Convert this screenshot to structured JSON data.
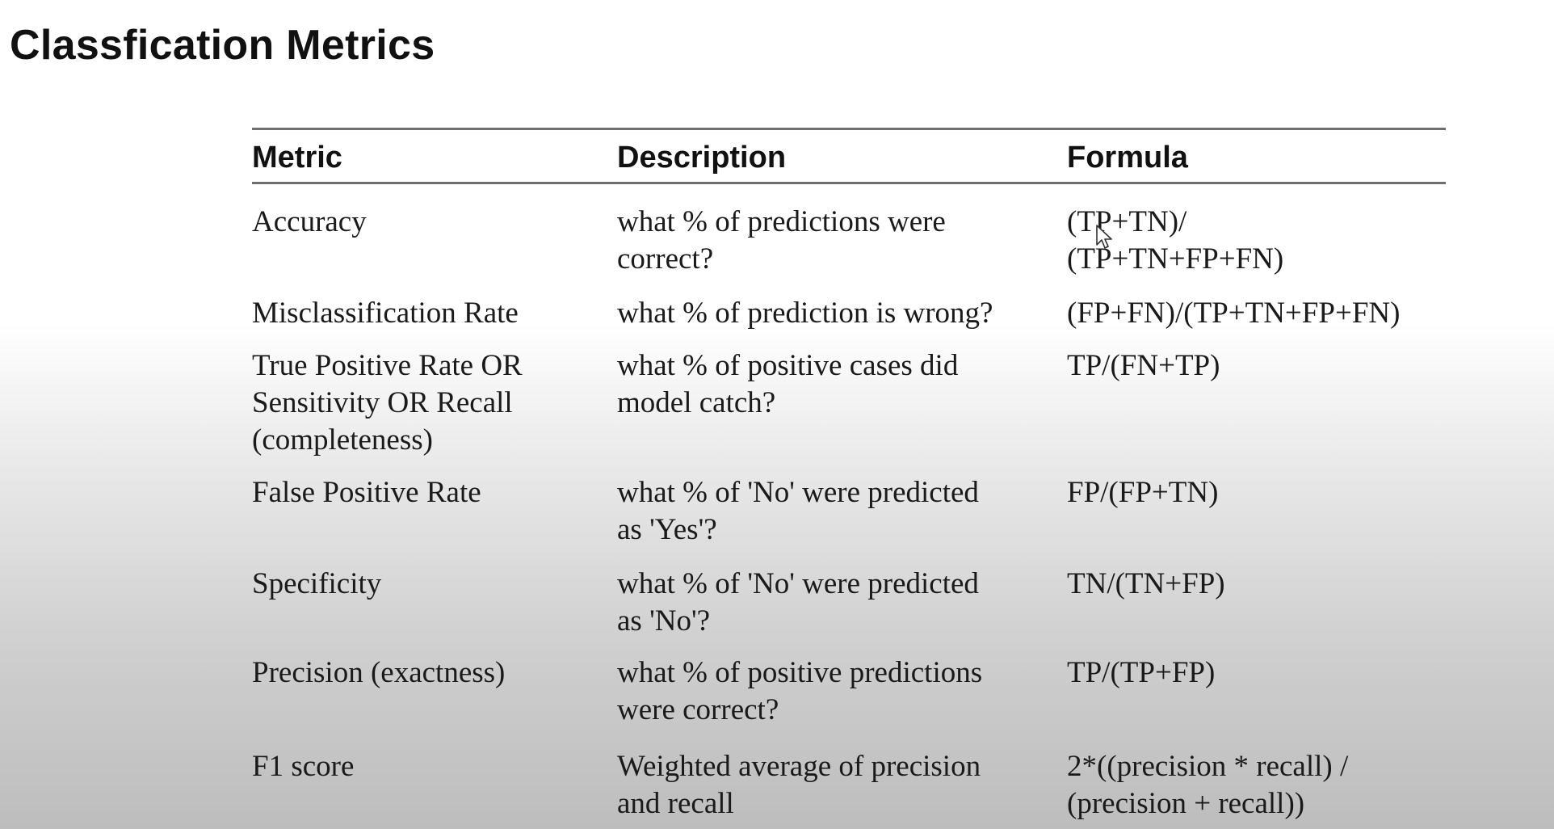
{
  "slide": {
    "title": "Classfication Metrics"
  },
  "table": {
    "headers": [
      "Metric",
      "Description",
      "Formula"
    ],
    "rows": [
      {
        "metric": [
          "Accuracy"
        ],
        "description": [
          "what % of predictions were",
          "correct?"
        ],
        "formula": [
          "(TP+TN)/",
          "(TP+TN+FP+FN)"
        ]
      },
      {
        "metric": [
          "Misclassification Rate"
        ],
        "description": [
          "what % of prediction is wrong?"
        ],
        "formula": [
          "(FP+FN)/(TP+TN+FP+FN)"
        ]
      },
      {
        "metric": [
          "True Positive Rate OR",
          "Sensitivity OR Recall",
          "(completeness)"
        ],
        "description": [
          "what % of positive cases did",
          "model catch?"
        ],
        "formula": [
          "TP/(FN+TP)"
        ]
      },
      {
        "metric": [
          "False Positive Rate"
        ],
        "description": [
          "what % of 'No' were predicted",
          "as 'Yes'?"
        ],
        "formula": [
          "FP/(FP+TN)"
        ]
      },
      {
        "metric": [
          "Specificity"
        ],
        "description": [
          "what % of 'No' were predicted",
          "as 'No'?"
        ],
        "formula": [
          "TN/(TN+FP)"
        ]
      },
      {
        "metric": [
          "Precision (exactness)"
        ],
        "description": [
          "what % of positive predictions",
          "were correct?"
        ],
        "formula": [
          "TP/(TP+FP)"
        ]
      },
      {
        "metric": [
          "F1 score"
        ],
        "description": [
          "Weighted average of precision",
          "and recall"
        ],
        "formula": [
          "2*((precision * recall) /",
          "(precision + recall))"
        ]
      }
    ]
  },
  "cursor": {
    "icon": "mouse-pointer-icon"
  }
}
